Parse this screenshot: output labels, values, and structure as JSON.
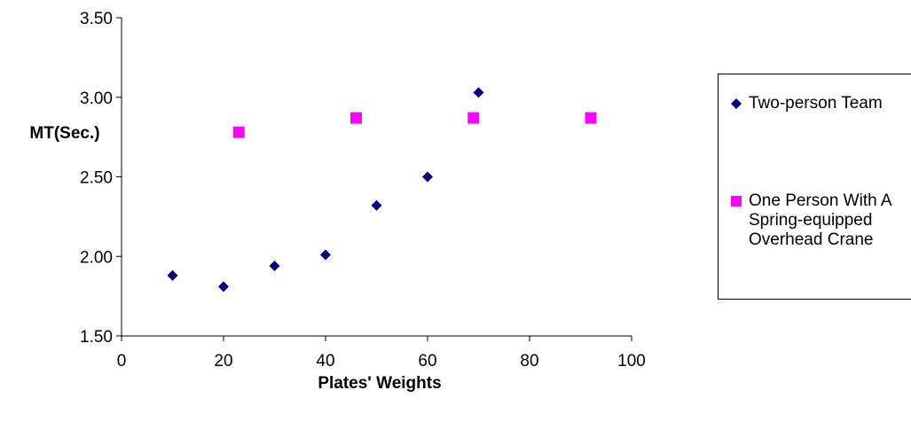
{
  "chart_data": {
    "type": "scatter",
    "title": "",
    "xlabel": "Plates' Weights",
    "ylabel": "MT(Sec.)",
    "xlim": [
      0,
      100
    ],
    "ylim": [
      1.5,
      3.5
    ],
    "x_ticks": [
      "0",
      "20",
      "40",
      "60",
      "80",
      "100"
    ],
    "y_ticks": [
      "1.50",
      "2.00",
      "2.50",
      "3.00",
      "3.50"
    ],
    "grid": false,
    "legend_position": "right",
    "series": [
      {
        "name": "Two-person Team",
        "marker": "diamond",
        "color": "#000080",
        "x": [
          10,
          20,
          30,
          40,
          50,
          60,
          70
        ],
        "y": [
          1.88,
          1.81,
          1.94,
          2.01,
          2.32,
          2.5,
          3.03
        ]
      },
      {
        "name": "One Person With A Spring-equipped Overhead Crane",
        "marker": "square",
        "color": "#FF00FF",
        "x": [
          23,
          46,
          69,
          92
        ],
        "y": [
          2.78,
          2.87,
          2.87,
          2.87
        ]
      }
    ]
  }
}
